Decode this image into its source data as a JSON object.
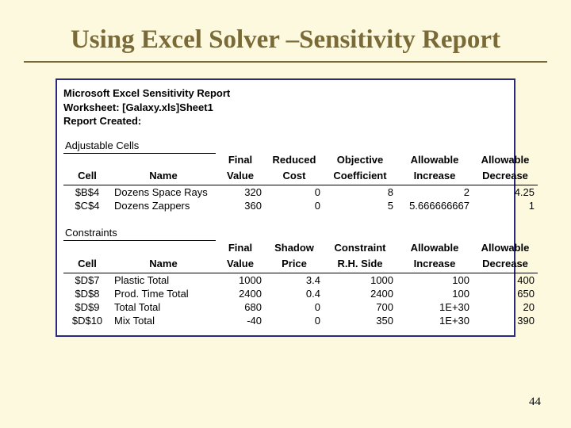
{
  "slide": {
    "title": "Using Excel Solver –Sensitivity Report",
    "pageNumber": "44"
  },
  "report": {
    "header": {
      "line1": "Microsoft Excel Sensitivity Report",
      "line2": "Worksheet: [Galaxy.xls]Sheet1",
      "line3": "Report Created:"
    },
    "adjustable": {
      "label": "Adjustable Cells",
      "columns": {
        "cell": "Cell",
        "name": "Name",
        "c1a": "Final",
        "c1b": "Value",
        "c2a": "Reduced",
        "c2b": "Cost",
        "c3a": "Objective",
        "c3b": "Coefficient",
        "c4a": "Allowable",
        "c4b": "Increase",
        "c5a": "Allowable",
        "c5b": "Decrease"
      },
      "rows": [
        {
          "cell": "$B$4",
          "name": "Dozens Space Rays",
          "v1": "320",
          "v2": "0",
          "v3": "8",
          "v4": "2",
          "v5": "4.25"
        },
        {
          "cell": "$C$4",
          "name": "Dozens Zappers",
          "v1": "360",
          "v2": "0",
          "v3": "5",
          "v4": "5.666666667",
          "v5": "1"
        }
      ]
    },
    "constraints": {
      "label": "Constraints",
      "columns": {
        "cell": "Cell",
        "name": "Name",
        "c1a": "Final",
        "c1b": "Value",
        "c2a": "Shadow",
        "c2b": "Price",
        "c3a": "Constraint",
        "c3b": "R.H. Side",
        "c4a": "Allowable",
        "c4b": "Increase",
        "c5a": "Allowable",
        "c5b": "Decrease"
      },
      "rows": [
        {
          "cell": "$D$7",
          "name": "Plastic Total",
          "v1": "1000",
          "v2": "3.4",
          "v3": "1000",
          "v4": "100",
          "v5": "400"
        },
        {
          "cell": "$D$8",
          "name": "Prod. Time Total",
          "v1": "2400",
          "v2": "0.4",
          "v3": "2400",
          "v4": "100",
          "v5": "650"
        },
        {
          "cell": "$D$9",
          "name": "Total Total",
          "v1": "680",
          "v2": "0",
          "v3": "700",
          "v4": "1E+30",
          "v5": "20"
        },
        {
          "cell": "$D$10",
          "name": "Mix Total",
          "v1": "-40",
          "v2": "0",
          "v3": "350",
          "v4": "1E+30",
          "v5": "390"
        }
      ]
    }
  }
}
